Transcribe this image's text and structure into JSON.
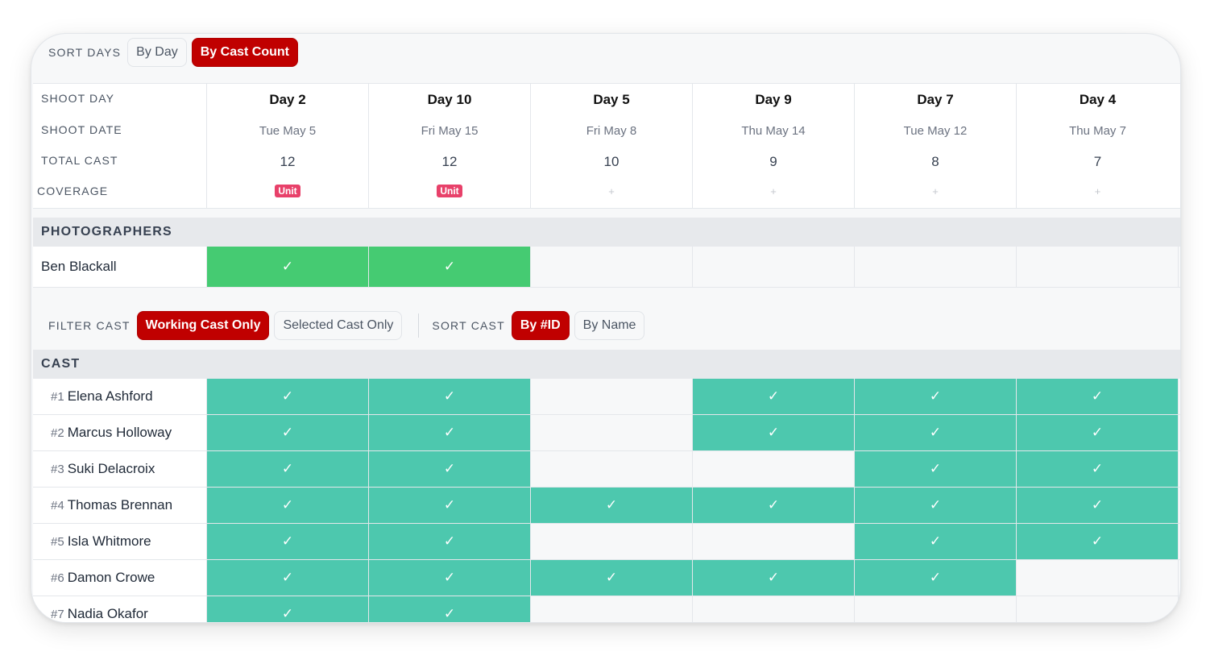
{
  "sort_days": {
    "label": "SORT DAYS",
    "options": [
      "By Day",
      "By Cast Count"
    ],
    "selected": "By Cast Count"
  },
  "header": {
    "row_labels": [
      "SHOOT DAY",
      "SHOOT DATE",
      "TOTAL CAST",
      "COVERAGE"
    ],
    "days": [
      {
        "day": "Day 2",
        "date": "Tue May 5",
        "total": "12",
        "coverage": "Unit"
      },
      {
        "day": "Day 10",
        "date": "Fri May 15",
        "total": "12",
        "coverage": "Unit"
      },
      {
        "day": "Day 5",
        "date": "Fri May 8",
        "total": "10",
        "coverage": "+"
      },
      {
        "day": "Day 9",
        "date": "Thu May 14",
        "total": "9",
        "coverage": "+"
      },
      {
        "day": "Day 7",
        "date": "Tue May 12",
        "total": "8",
        "coverage": "+"
      },
      {
        "day": "Day 4",
        "date": "Thu May 7",
        "total": "7",
        "coverage": "+"
      }
    ]
  },
  "photographers": {
    "title": "PHOTOGRAPHERS",
    "rows": [
      {
        "name": "Ben Blackall",
        "marks": [
          true,
          true,
          false,
          false,
          false,
          false
        ]
      }
    ]
  },
  "filter_cast": {
    "label": "FILTER CAST",
    "options": [
      "Working Cast Only",
      "Selected Cast Only"
    ],
    "selected": "Working Cast Only"
  },
  "sort_cast": {
    "label": "SORT CAST",
    "options": [
      "By #ID",
      "By Name"
    ],
    "selected": "By #ID"
  },
  "cast": {
    "title": "CAST",
    "check_glyph": "✓",
    "rows": [
      {
        "id": "#1",
        "name": "Elena Ashford",
        "marks": [
          true,
          true,
          false,
          true,
          true,
          true
        ]
      },
      {
        "id": "#2",
        "name": "Marcus Holloway",
        "marks": [
          true,
          true,
          false,
          true,
          true,
          true
        ]
      },
      {
        "id": "#3",
        "name": "Suki Delacroix",
        "marks": [
          true,
          true,
          false,
          false,
          true,
          true
        ]
      },
      {
        "id": "#4",
        "name": "Thomas Brennan",
        "marks": [
          true,
          true,
          true,
          true,
          true,
          true
        ]
      },
      {
        "id": "#5",
        "name": "Isla Whitmore",
        "marks": [
          true,
          true,
          false,
          false,
          true,
          true
        ]
      },
      {
        "id": "#6",
        "name": "Damon Crowe",
        "marks": [
          true,
          true,
          true,
          true,
          true,
          false
        ]
      },
      {
        "id": "#7",
        "name": "Nadia Okafor",
        "marks": [
          true,
          true,
          false,
          false,
          false,
          false
        ]
      }
    ]
  },
  "colors": {
    "accent": "#c00000",
    "photographer_on": "#45cb72",
    "cast_on": "#4dc8ae",
    "badge": "#e8416a"
  }
}
